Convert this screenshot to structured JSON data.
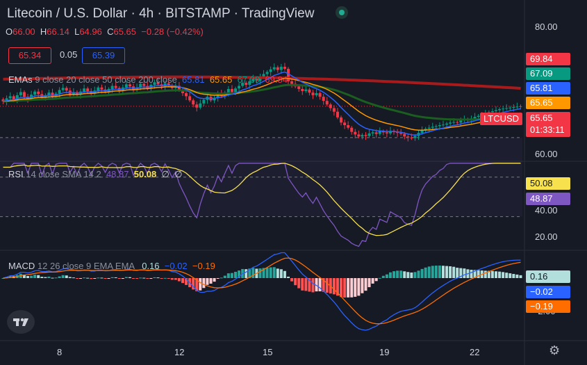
{
  "header": {
    "title": "Litecoin / U.S. Dollar · 4h · BITSTAMP · TradingView",
    "ohlc": {
      "o_key": "O",
      "o_val": "66.00",
      "h_key": "H",
      "h_val": "66.14",
      "l_key": "L",
      "l_val": "64.96",
      "c_key": "C",
      "c_val": "65.65",
      "change": "−0.28 (−0.42%)"
    },
    "bid": "65.34",
    "spread": "0.05",
    "ask": "65.39"
  },
  "ema_legend": {
    "name": "EMAs",
    "params": "9 close 20 close 50 close 200 close",
    "values": [
      {
        "value": "65.81",
        "color": "#2962ff"
      },
      {
        "value": "65.65",
        "color": "#ff9800"
      },
      {
        "value": "67.09",
        "color": "#089981"
      },
      {
        "value": "69.84",
        "color": "#f23645"
      }
    ]
  },
  "rsi_legend": {
    "name": "RSI",
    "params": "14 close SMA 14 2",
    "v1": "48.87",
    "v1_color": "#7e57c2",
    "v2": "50.08",
    "v2_color": "#f7e14c",
    "v3": "∅",
    "v4": "∅"
  },
  "macd_legend": {
    "name": "MACD",
    "params": "12 26 close 9 EMA EMA",
    "v1": "0.16",
    "v1_color": "#b2dfdb",
    "v2": "−0.02",
    "v2_color": "#2962ff",
    "v3": "−0.19",
    "v3_color": "#ff6d00"
  },
  "price_axis": {
    "ticks": [
      "80.00",
      "60.00"
    ],
    "labels": [
      {
        "text": "69.84",
        "bg": "#f23645",
        "fg": "#ffffff"
      },
      {
        "text": "67.09",
        "bg": "#089981",
        "fg": "#ffffff"
      },
      {
        "text": "65.81",
        "bg": "#2962ff",
        "fg": "#ffffff"
      },
      {
        "text": "65.65",
        "bg": "#ff9800",
        "fg": "#ffffff"
      }
    ],
    "current": "65.65",
    "countdown": "01:33:11",
    "symbol_tag": "LTCUSD"
  },
  "rsi_axis": {
    "ticks": [
      "40.00",
      "20.00"
    ],
    "label_sma": "50.08",
    "label_rsi": "48.87"
  },
  "macd_axis": {
    "tick": "-2.00",
    "label_hist": "0.16",
    "label_macd": "−0.02",
    "label_signal": "−0.19"
  },
  "time_axis": [
    "8",
    "12",
    "15",
    "19",
    "22"
  ],
  "chart_data": {
    "type": "line",
    "price": {
      "y_range": [
        55,
        83
      ],
      "close": [
        66.6,
        67.2,
        67.6,
        67.0,
        67.8,
        68.4,
        67.5,
        67.1,
        67.9,
        68.5,
        68.0,
        67.3,
        67.8,
        68.3,
        67.5,
        68.1,
        68.8,
        69.2,
        68.7,
        68.0,
        68.4,
        67.9,
        68.5,
        69.1,
        68.6,
        68.1,
        68.7,
        69.3,
        68.9,
        68.5,
        69.0,
        69.6,
        69.2,
        68.7,
        69.3,
        69.9,
        69.5,
        68.8,
        69.3,
        70.0,
        69.6,
        69.1,
        69.8,
        70.3,
        69.9,
        69.5,
        70.1,
        69.7,
        69.2,
        69.6,
        68.8,
        68.2,
        67.6,
        66.8,
        66.0,
        65.4,
        66.2,
        66.9,
        67.5,
        66.8,
        67.3,
        68.1,
        67.6,
        68.3,
        69.0,
        68.4,
        69.1,
        69.6,
        70.2,
        69.8,
        70.5,
        71.0,
        70.6,
        71.4,
        71.9,
        72.3,
        72.8,
        73.2,
        72.7,
        73.3,
        72.9,
        70.5,
        70.0,
        69.5,
        69.0,
        68.6,
        68.9,
        68.3,
        67.8,
        68.2,
        67.5,
        66.7,
        66.0,
        65.3,
        64.6,
        63.5,
        62.5,
        62.0,
        61.5,
        60.7,
        60.2,
        59.8,
        60.1,
        59.9,
        60.4,
        60.6,
        60.3,
        60.8,
        60.6,
        60.4,
        60.9,
        60.7,
        60.5,
        60.3,
        59.8,
        59.6,
        59.5,
        59.9,
        60.5,
        61.0,
        61.3,
        61.5,
        61.7,
        61.8,
        62.0,
        62.1,
        62.3,
        62.5,
        62.6,
        62.5,
        62.9,
        63.1,
        63.0,
        63.3,
        63.6,
        63.8,
        64.0,
        64.2,
        64.5,
        64.7,
        64.9,
        65.1,
        65.2,
        65.3,
        65.4,
        65.5,
        65.6,
        65.65
      ],
      "ema9_last": 65.81,
      "ema20_last": 65.65,
      "ema50_last": 67.09,
      "ema200_last": 69.84
    },
    "rsi": {
      "y_range": [
        13,
        58
      ],
      "levels": [
        30,
        50
      ],
      "rsi_last": 48.87,
      "sma_last": 50.08
    },
    "macd": {
      "macd_last": -0.02,
      "signal_last": -0.19,
      "hist_last": 0.16
    }
  }
}
